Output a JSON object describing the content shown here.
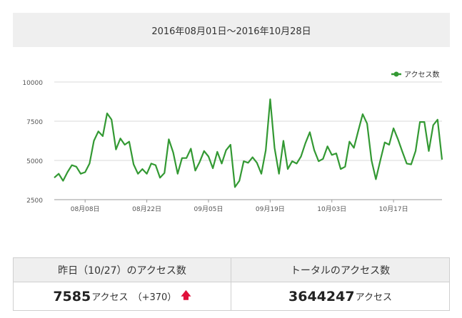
{
  "period_label": "2016年08月01日～2016年10月28日",
  "chart_data": {
    "type": "line",
    "series": [
      {
        "name": "アクセス数",
        "color": "#339933",
        "values": [
          3900,
          4150,
          3700,
          4250,
          4700,
          4600,
          4150,
          4250,
          4800,
          6250,
          6850,
          6550,
          8000,
          7600,
          5700,
          6400,
          6000,
          6200,
          4750,
          4150,
          4450,
          4150,
          4800,
          4700,
          3900,
          4200,
          6350,
          5500,
          4150,
          5150,
          5150,
          5750,
          4350,
          4900,
          5600,
          5250,
          4500,
          5550,
          4800,
          5650,
          6000,
          3300,
          3700,
          4950,
          4850,
          5200,
          4850,
          4150,
          5650,
          8900,
          5800,
          4150,
          6250,
          4450,
          4950,
          4800,
          5250,
          6100,
          6800,
          5650,
          4950,
          5100,
          5900,
          5350,
          5450,
          4450,
          4600,
          6200,
          5800,
          6900,
          7950,
          7350,
          5000,
          3800,
          5000,
          6150,
          6000,
          7050,
          6350,
          5550,
          4800,
          4750,
          5600,
          7450,
          7450,
          5600,
          7250,
          7600,
          5050
        ]
      }
    ],
    "x_tick_labels": [
      "08月08日",
      "08月22日",
      "09月05日",
      "09月19日",
      "10月03日",
      "10月17日"
    ],
    "x_tick_indices": [
      7,
      21,
      35,
      49,
      63,
      77
    ],
    "y_ticks": [
      2500,
      5000,
      7500,
      10000
    ],
    "ylim": [
      2500,
      10000
    ],
    "legend_position": "top-right",
    "grid": "horizontal"
  },
  "stats": {
    "yesterday_label": "昨日（10/27）のアクセス数",
    "yesterday_value": "7585",
    "yesterday_unit": "アクセス",
    "yesterday_diff": "（+370）",
    "up_arrow": "🡅",
    "total_label": "トータルのアクセス数",
    "total_value": "3644247",
    "total_unit": "アクセス"
  }
}
